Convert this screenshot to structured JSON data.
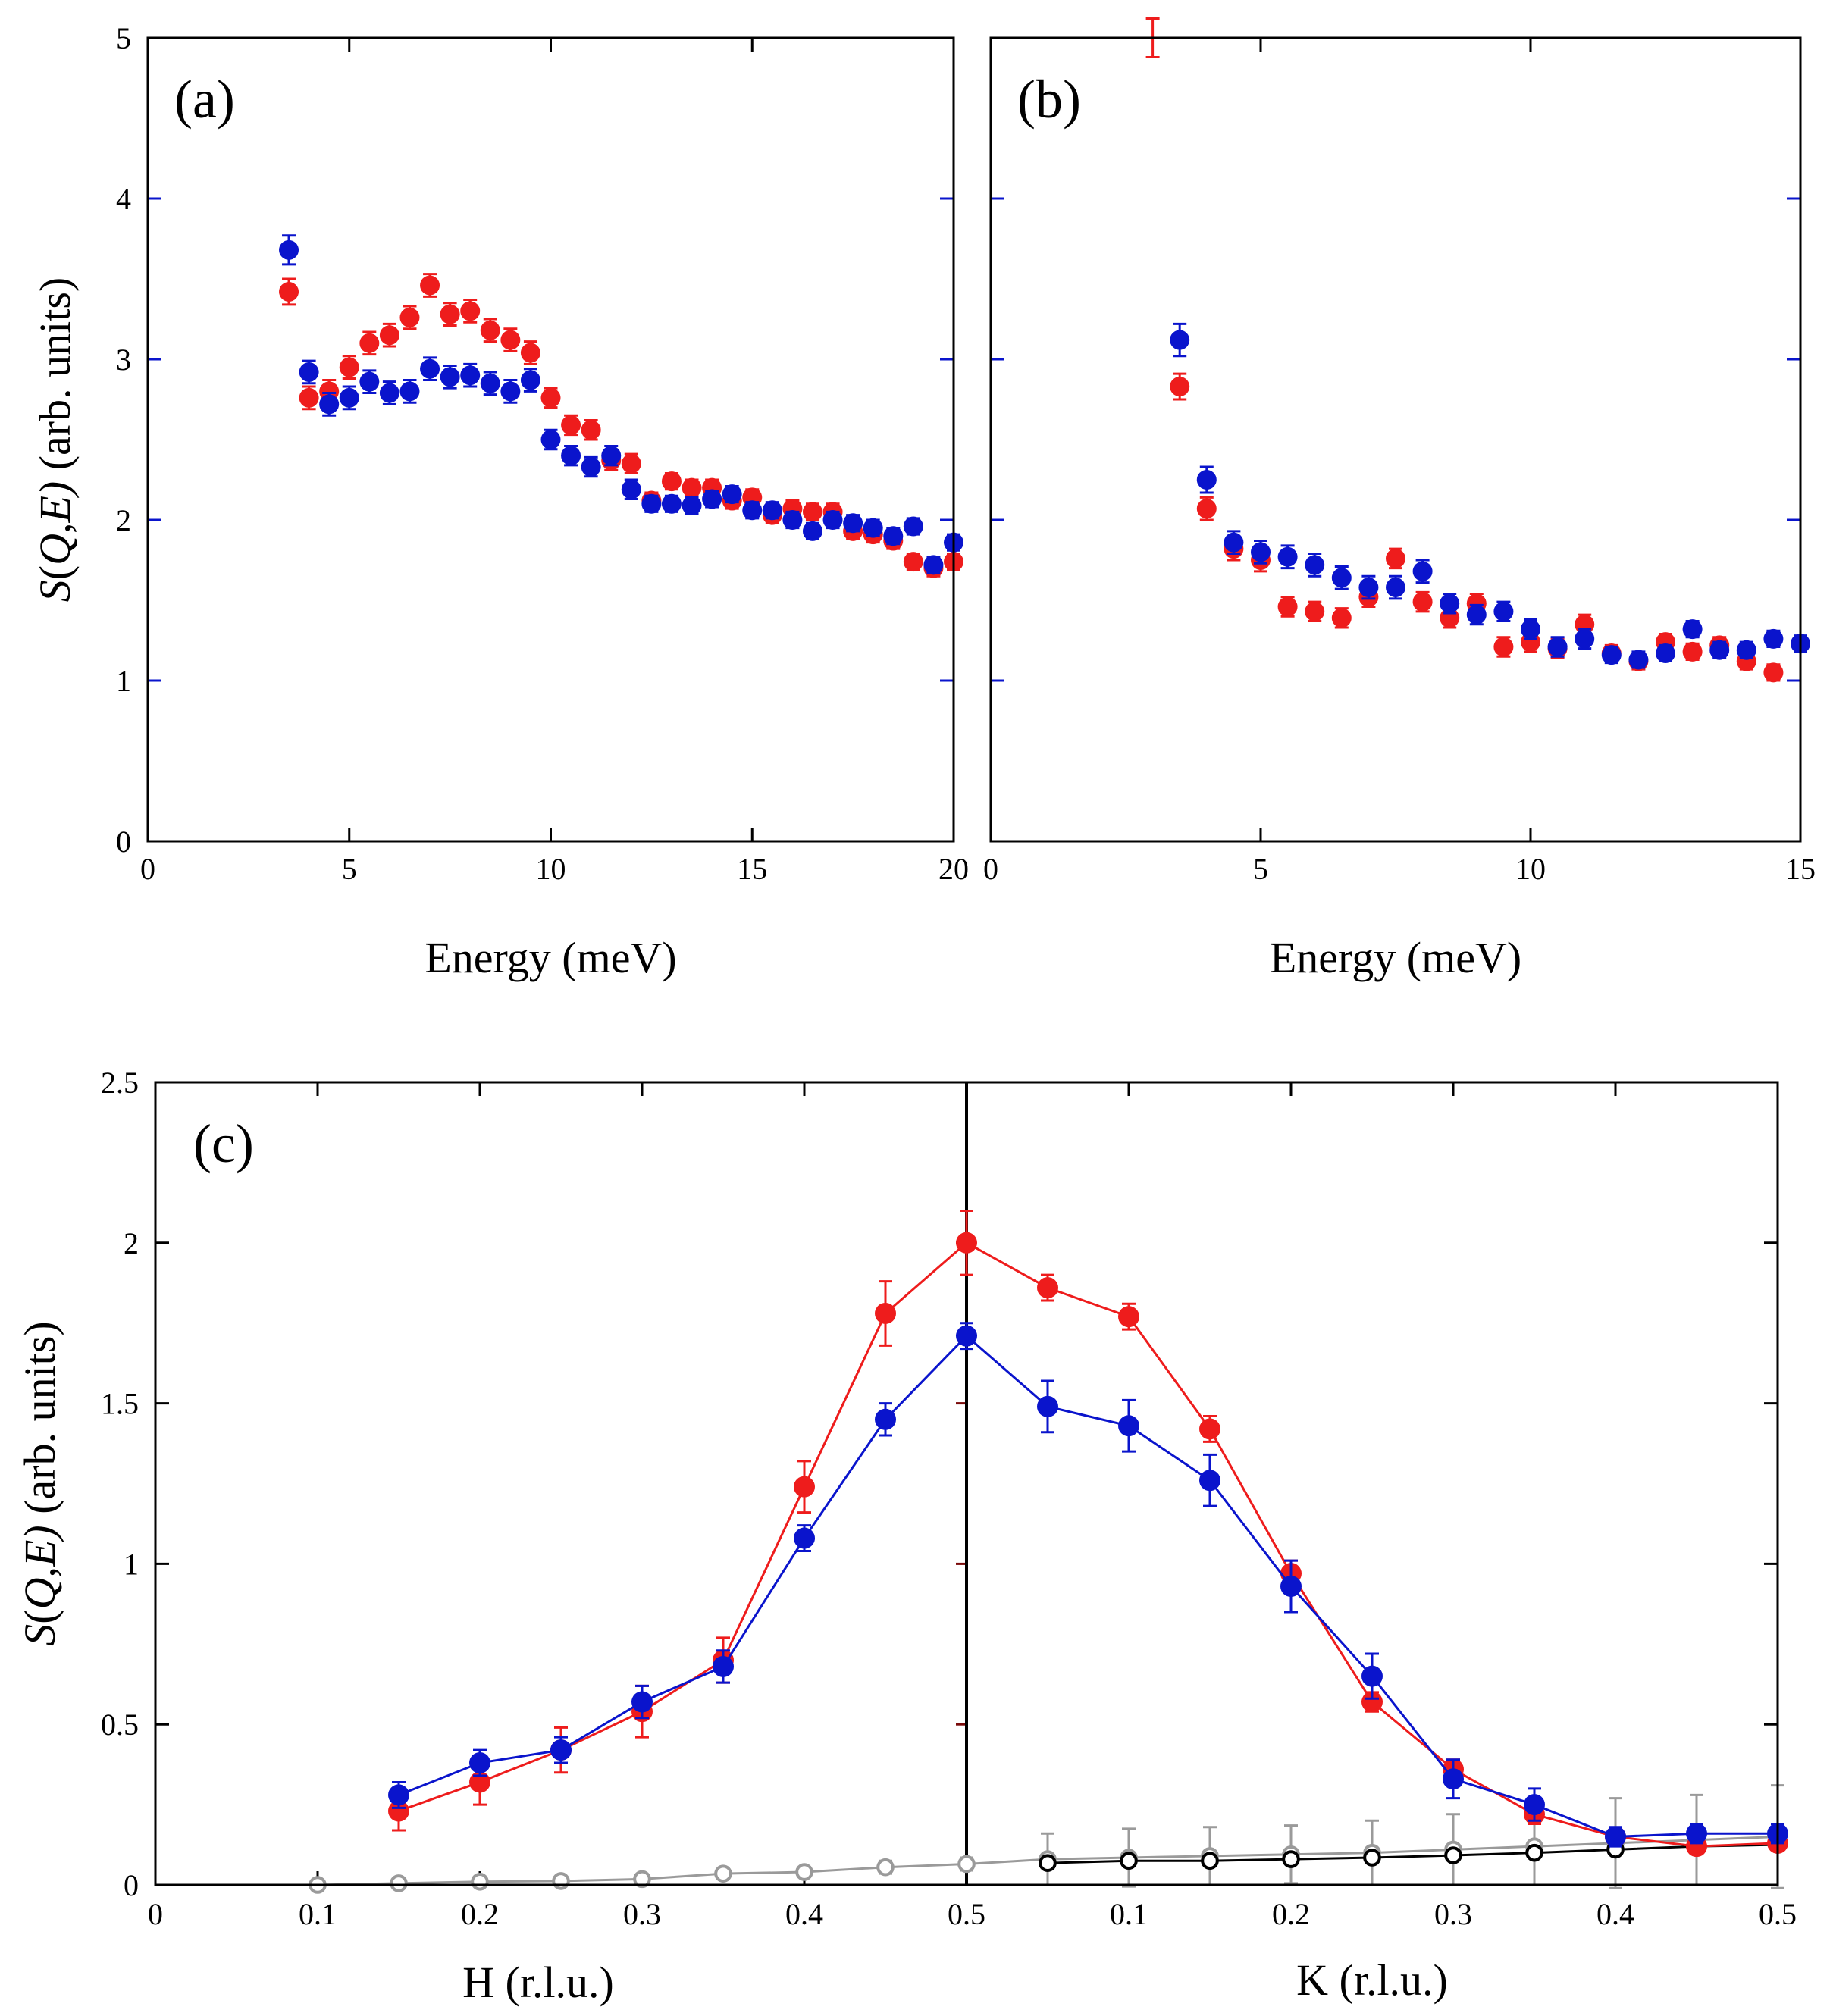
{
  "chart_data": [
    {
      "panel": "a",
      "type": "scatter",
      "panel_label": "(a)",
      "xlabel": "Energy (meV)",
      "ylabel": "S(Q,E) (arb. units)",
      "xlim": [
        0,
        20
      ],
      "ylim": [
        0,
        5
      ],
      "xticks": [
        "0",
        "5",
        "10",
        "15",
        "20"
      ],
      "yticks": [
        "0",
        "1",
        "2",
        "3",
        "4",
        "5"
      ],
      "series": [
        {
          "name": "red",
          "color": "#ee1c1c",
          "x": [
            3.5,
            4,
            4.5,
            5,
            5.5,
            6,
            6.5,
            7,
            7.5,
            8,
            8.5,
            9,
            9.5,
            10,
            10.5,
            11,
            11.5,
            12,
            12.5,
            13,
            13.5,
            14,
            14.5,
            15,
            15.5,
            16,
            16.5,
            17,
            17.5,
            18,
            18.5,
            19,
            19.5,
            20
          ],
          "y": [
            3.42,
            2.76,
            2.8,
            2.95,
            3.1,
            3.15,
            3.26,
            3.46,
            3.28,
            3.3,
            3.18,
            3.12,
            3.04,
            2.76,
            2.59,
            2.56,
            2.37,
            2.35,
            2.12,
            2.24,
            2.2,
            2.2,
            2.12,
            2.14,
            2.03,
            2.07,
            2.05,
            2.05,
            1.93,
            1.91,
            1.87,
            1.74,
            1.7,
            1.74
          ],
          "err": [
            0.08,
            0.07,
            0.07,
            0.07,
            0.07,
            0.07,
            0.07,
            0.07,
            0.07,
            0.07,
            0.07,
            0.07,
            0.07,
            0.06,
            0.06,
            0.06,
            0.06,
            0.06,
            0.05,
            0.05,
            0.05,
            0.05,
            0.05,
            0.05,
            0.05,
            0.05,
            0.05,
            0.05,
            0.05,
            0.05,
            0.05,
            0.05,
            0.05,
            0.05
          ]
        },
        {
          "name": "blue",
          "color": "#0a14cc",
          "x": [
            3.5,
            4,
            4.5,
            5,
            5.5,
            6,
            6.5,
            7,
            7.5,
            8,
            8.5,
            9,
            9.5,
            10,
            10.5,
            11,
            11.5,
            12,
            12.5,
            13,
            13.5,
            14,
            14.5,
            15,
            15.5,
            16,
            16.5,
            17,
            17.5,
            18,
            18.5,
            19,
            19.5,
            20
          ],
          "y": [
            3.68,
            2.92,
            2.72,
            2.76,
            2.86,
            2.79,
            2.8,
            2.94,
            2.89,
            2.9,
            2.85,
            2.8,
            2.87,
            2.5,
            2.4,
            2.33,
            2.4,
            2.19,
            2.1,
            2.1,
            2.09,
            2.13,
            2.16,
            2.06,
            2.06,
            2.0,
            1.93,
            2.0,
            1.98,
            1.95,
            1.9,
            1.96,
            1.72,
            1.86
          ],
          "err": [
            0.09,
            0.07,
            0.07,
            0.07,
            0.07,
            0.07,
            0.07,
            0.07,
            0.07,
            0.07,
            0.07,
            0.07,
            0.07,
            0.06,
            0.06,
            0.06,
            0.06,
            0.06,
            0.05,
            0.05,
            0.05,
            0.05,
            0.05,
            0.05,
            0.05,
            0.05,
            0.05,
            0.05,
            0.05,
            0.05,
            0.05,
            0.05,
            0.05,
            0.05
          ]
        }
      ]
    },
    {
      "panel": "b",
      "type": "scatter",
      "panel_label": "(b)",
      "xlabel": "Energy (meV)",
      "xlim": [
        0,
        15
      ],
      "ylim": [
        0,
        5
      ],
      "xticks": [
        "0",
        "5",
        "10",
        "15"
      ],
      "series": [
        {
          "name": "red",
          "color": "#ee1c1c",
          "x": [
            3.5,
            4,
            4.5,
            5,
            5.5,
            6,
            6.5,
            7,
            7.5,
            8,
            8.5,
            9,
            9.5,
            10,
            10.5,
            11,
            11.5,
            12,
            12.5,
            13,
            13.5,
            14,
            14.5
          ],
          "y": [
            2.83,
            2.07,
            1.82,
            1.75,
            1.46,
            1.43,
            1.39,
            1.52,
            1.76,
            1.49,
            1.39,
            1.48,
            1.21,
            1.24,
            1.2,
            1.35,
            1.17,
            1.12,
            1.24,
            1.18,
            1.22,
            1.12,
            1.05
          ],
          "err": [
            0.08,
            0.07,
            0.07,
            0.07,
            0.06,
            0.06,
            0.06,
            0.06,
            0.06,
            0.06,
            0.06,
            0.06,
            0.06,
            0.06,
            0.06,
            0.06,
            0.05,
            0.05,
            0.05,
            0.05,
            0.05,
            0.05,
            0.05
          ]
        },
        {
          "name": "blue",
          "color": "#0a14cc",
          "x": [
            3.5,
            4,
            4.5,
            5,
            5.5,
            6,
            6.5,
            7,
            7.5,
            8,
            8.5,
            9,
            9.5,
            10,
            10.5,
            11,
            11.5,
            12,
            12.5,
            13,
            13.5,
            14,
            14.5,
            15
          ],
          "y": [
            3.12,
            2.25,
            1.86,
            1.8,
            1.77,
            1.72,
            1.64,
            1.58,
            1.58,
            1.68,
            1.48,
            1.41,
            1.43,
            1.32,
            1.21,
            1.26,
            1.16,
            1.13,
            1.17,
            1.32,
            1.19,
            1.19,
            1.26,
            1.23
          ],
          "err": [
            0.1,
            0.08,
            0.07,
            0.07,
            0.07,
            0.07,
            0.07,
            0.07,
            0.07,
            0.07,
            0.06,
            0.06,
            0.06,
            0.06,
            0.06,
            0.06,
            0.05,
            0.05,
            0.05,
            0.05,
            0.05,
            0.05,
            0.05,
            0.05
          ]
        },
        {
          "name": "red-offscale",
          "color": "#ee1c1c",
          "x": [
            3.0
          ],
          "y": [
            5.0
          ],
          "err": [
            0.12
          ],
          "marker": false
        }
      ]
    },
    {
      "panel": "c",
      "type": "line",
      "panel_label": "(c)",
      "ylabel": "S(Q,E) (arb. units)",
      "xlabel_left": "H (r.l.u.)",
      "xlabel_right": "K (r.l.u.)",
      "xlim": [
        0,
        1
      ],
      "ylim": [
        0,
        2.5
      ],
      "divider_x": 0.5,
      "xtick_values": [
        0,
        0.1,
        0.2,
        0.3,
        0.4,
        0.5,
        0.6,
        0.7,
        0.8,
        0.9,
        1.0
      ],
      "xticks": [
        "0",
        "0.1",
        "0.2",
        "0.3",
        "0.4",
        "0.5",
        "0.1",
        "0.2",
        "0.3",
        "0.4",
        "0.5"
      ],
      "yticks": [
        "0",
        "0.5",
        "1",
        "1.5",
        "2",
        "2.5"
      ],
      "ytick_values": [
        0,
        0.5,
        1,
        1.5,
        2,
        2.5
      ],
      "series": [
        {
          "name": "grey-light",
          "color": "#9a9a9a",
          "marker": "open",
          "x": [
            0.1,
            0.15,
            0.2,
            0.25,
            0.3,
            0.35,
            0.4,
            0.45,
            0.5,
            0.55,
            0.6,
            0.65,
            0.7,
            0.75,
            0.8,
            0.85,
            0.9,
            0.95,
            1.0
          ],
          "y": [
            0.0,
            0.005,
            0.01,
            0.012,
            0.018,
            0.035,
            0.04,
            0.055,
            0.065,
            0.08,
            0.085,
            0.09,
            0.095,
            0.1,
            0.11,
            0.12,
            0.13,
            0.14,
            0.15
          ],
          "err": [
            0.005,
            0.005,
            0.01,
            0.01,
            0.01,
            0.015,
            0.015,
            0.02,
            0.02,
            0.08,
            0.09,
            0.09,
            0.09,
            0.1,
            0.11,
            0.12,
            0.14,
            0.14,
            0.16
          ]
        },
        {
          "name": "black",
          "color": "#000000",
          "marker": "open",
          "x": [
            0.55,
            0.6,
            0.65,
            0.7,
            0.75,
            0.8,
            0.85,
            0.9,
            0.95,
            1.0
          ],
          "y": [
            0.068,
            0.075,
            0.075,
            0.08,
            0.085,
            0.092,
            0.1,
            0.11,
            0.12,
            0.125
          ],
          "err": [
            0.01,
            0.01,
            0.01,
            0.01,
            0.01,
            0.01,
            0.01,
            0.01,
            0.01,
            0.01
          ]
        },
        {
          "name": "red",
          "color": "#ee1c1c",
          "marker": "filled",
          "x": [
            0.15,
            0.2,
            0.25,
            0.3,
            0.35,
            0.4,
            0.45,
            0.5,
            0.55,
            0.6,
            0.65,
            0.7,
            0.75,
            0.8,
            0.85,
            0.9,
            0.95,
            1.0
          ],
          "y": [
            0.23,
            0.32,
            0.42,
            0.54,
            0.7,
            1.24,
            1.78,
            2.0,
            1.86,
            1.77,
            1.42,
            0.97,
            0.57,
            0.36,
            0.22,
            0.15,
            0.12,
            0.13
          ],
          "err": [
            0.06,
            0.07,
            0.07,
            0.08,
            0.07,
            0.08,
            0.1,
            0.1,
            0.04,
            0.04,
            0.04,
            0.04,
            0.03,
            0.03,
            0.03,
            0.02,
            0.02,
            0.02
          ]
        },
        {
          "name": "blue",
          "color": "#0a14cc",
          "marker": "filled",
          "x": [
            0.15,
            0.2,
            0.25,
            0.3,
            0.35,
            0.4,
            0.45,
            0.5,
            0.55,
            0.6,
            0.65,
            0.7,
            0.75,
            0.8,
            0.85,
            0.9,
            0.95,
            1.0
          ],
          "y": [
            0.28,
            0.38,
            0.42,
            0.57,
            0.68,
            1.08,
            1.45,
            1.71,
            1.49,
            1.43,
            1.26,
            0.93,
            0.65,
            0.33,
            0.25,
            0.15,
            0.16,
            0.16
          ],
          "err": [
            0.04,
            0.04,
            0.04,
            0.05,
            0.05,
            0.04,
            0.05,
            0.04,
            0.08,
            0.08,
            0.08,
            0.08,
            0.07,
            0.06,
            0.05,
            0.03,
            0.03,
            0.03
          ]
        }
      ]
    }
  ]
}
